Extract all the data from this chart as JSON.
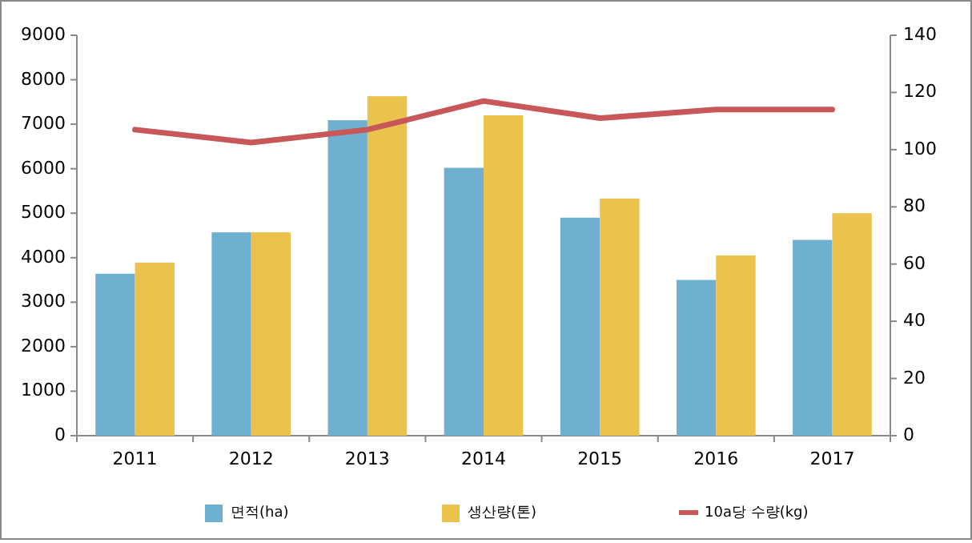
{
  "chart_data": {
    "type": "bar",
    "categories": [
      "2011",
      "2012",
      "2013",
      "2014",
      "2015",
      "2016",
      "2017"
    ],
    "series": [
      {
        "name": "면적(ha)",
        "color": "#6fb0d1",
        "values": [
          3640,
          4570,
          7090,
          6020,
          4900,
          3500,
          4400
        ]
      },
      {
        "name": "생산량(톤)",
        "color": "#ebc24b",
        "values": [
          3890,
          4570,
          7630,
          7200,
          5330,
          4050,
          5000
        ]
      },
      {
        "name": "10a당 수량(kg)",
        "color": "#c8575a",
        "type": "line",
        "axis": "y2",
        "values": [
          107,
          102.5,
          107,
          117,
          111,
          114,
          114
        ]
      }
    ],
    "ylim": [
      0,
      9000
    ],
    "yticks": [
      0,
      1000,
      2000,
      3000,
      4000,
      5000,
      6000,
      7000,
      8000,
      9000
    ],
    "y2lim": [
      0,
      140
    ],
    "y2ticks": [
      0,
      20,
      40,
      60,
      80,
      100,
      120,
      140
    ],
    "grid": false,
    "legend": "bottom",
    "marker": "none",
    "line_style": "solid"
  }
}
